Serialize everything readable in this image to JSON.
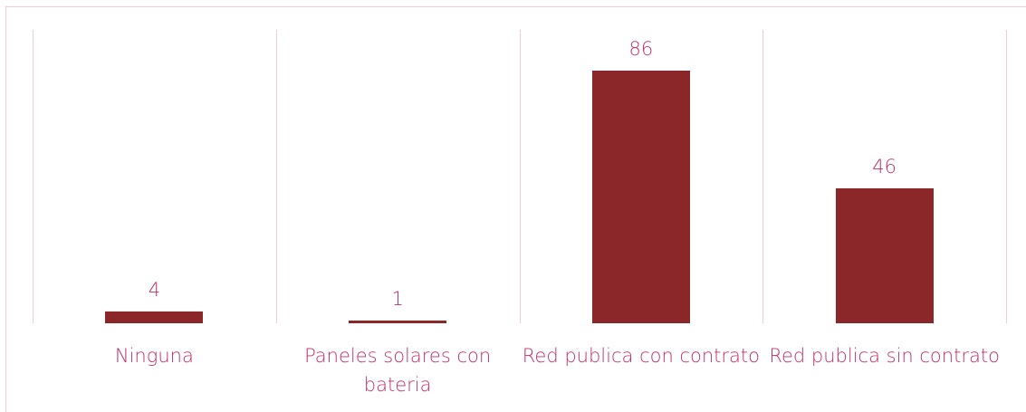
{
  "chart_data": {
    "type": "bar",
    "categories": [
      "Ninguna",
      "Paneles solares con bateria",
      "Red publica con contrato",
      "Red publica sin contrato"
    ],
    "values": [
      4,
      1,
      86,
      46
    ],
    "color": "#8b2629"
  }
}
